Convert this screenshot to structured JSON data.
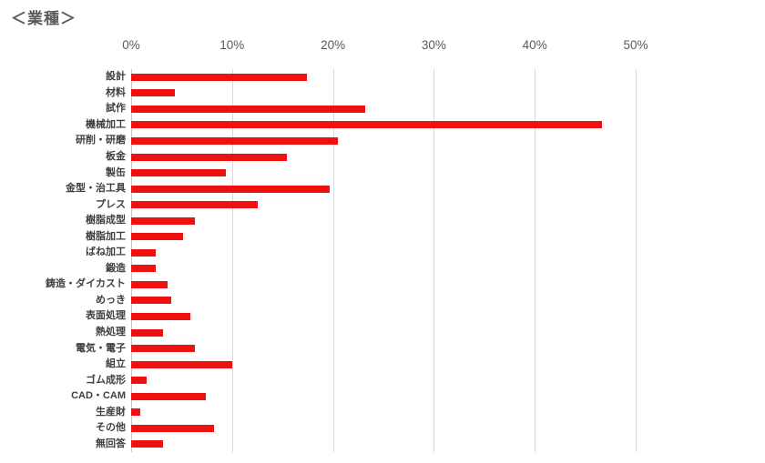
{
  "title": "＜業種＞",
  "chart_data": {
    "type": "bar",
    "orientation": "horizontal",
    "title": "＜業種＞",
    "xlabel": "",
    "ylabel": "",
    "unit": "%",
    "xlim": [
      0,
      50
    ],
    "x_ticks": [
      "0%",
      "10%",
      "20%",
      "30%",
      "40%",
      "50%"
    ],
    "grid": true,
    "legend": "none",
    "categories": [
      "設計",
      "材料",
      "試作",
      "機械加工",
      "研削・研磨",
      "板金",
      "製缶",
      "金型・治工具",
      "プレス",
      "樹脂成型",
      "樹脂加工",
      "ばね加工",
      "鍛造",
      "鋳造・ダイカスト",
      "めっき",
      "表面処理",
      "熱処理",
      "電気・電子",
      "組立",
      "ゴム成形",
      "CAD・CAM",
      "生産財",
      "その他",
      "無回答"
    ],
    "values": [
      17.4,
      4.3,
      23.2,
      46.7,
      20.5,
      15.4,
      9.4,
      19.7,
      12.5,
      6.3,
      5.1,
      2.4,
      2.4,
      3.6,
      4.0,
      5.9,
      3.2,
      6.3,
      10.0,
      1.5,
      7.4,
      0.9,
      8.2,
      3.2
    ]
  },
  "colors": {
    "bar": "#ee1111",
    "gridline": "#d9d9d9",
    "axis_line": "#c6c6c6",
    "title_text": "#595959",
    "tick_text": "#595959",
    "label_text": "#3f3f3f"
  }
}
